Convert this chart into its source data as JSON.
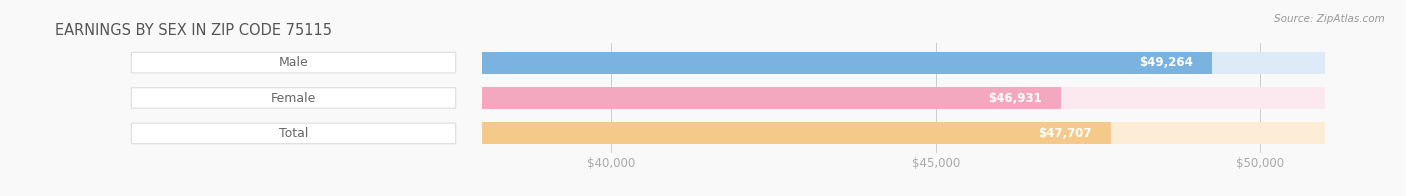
{
  "title": "EARNINGS BY SEX IN ZIP CODE 75115",
  "source": "Source: ZipAtlas.com",
  "categories": [
    "Male",
    "Female",
    "Total"
  ],
  "values": [
    49264,
    46931,
    47707
  ],
  "bar_colors": [
    "#7ab3e0",
    "#f4a8c0",
    "#f5c98a"
  ],
  "bar_bg_colors": [
    "#ddeaf8",
    "#fce8ef",
    "#fdecd6"
  ],
  "value_labels": [
    "$49,264",
    "$46,931",
    "$47,707"
  ],
  "x_min": 38000,
  "x_max": 51000,
  "x_ticks": [
    40000,
    45000,
    50000
  ],
  "x_tick_labels": [
    "$40,000",
    "$45,000",
    "$50,000"
  ],
  "background_color": "#f9f9f9",
  "title_color": "#555555",
  "tick_color": "#aaaaaa",
  "category_label_color": "#666666",
  "source_color": "#999999"
}
